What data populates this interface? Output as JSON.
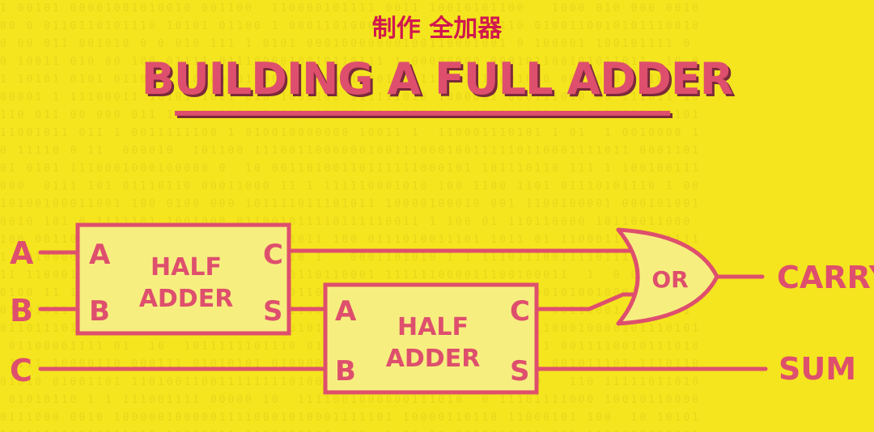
{
  "subtitle": "制作 全加器",
  "title": "BUILDING A FULL ADDER",
  "inputs": {
    "a": "A",
    "b": "B",
    "c": "C"
  },
  "outputs": {
    "carry": "CARRY",
    "sum": "SUM"
  },
  "half_adder_1": {
    "line1": "HALF",
    "line2": "ADDER",
    "port_a": "A",
    "port_b": "B",
    "port_c": "C",
    "port_s": "S"
  },
  "half_adder_2": {
    "line1": "HALF",
    "line2": "ADDER",
    "port_a": "A",
    "port_b": "B",
    "port_c": "C",
    "port_s": "S"
  },
  "or_gate": {
    "label": "OR"
  },
  "colors": {
    "background": "#f4e51f",
    "stroke": "#de4f6d",
    "box_fill": "#f6ef80",
    "subtitle": "#d0174f"
  }
}
